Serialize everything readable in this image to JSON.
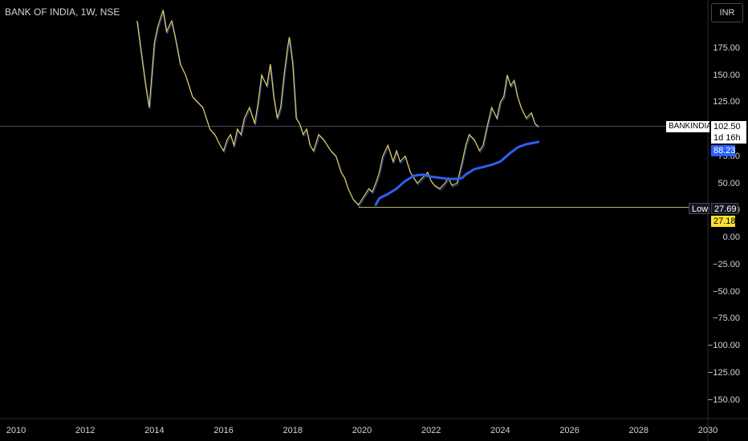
{
  "header": {
    "title": "BANK OF INDIA, 1W, NSE",
    "currency": "INR"
  },
  "price_tag": {
    "symbol": "BANKINDIA",
    "price": "102.50",
    "countdown": "1d 16h"
  },
  "ma_tag": {
    "value": "88.23"
  },
  "low_tag": {
    "label": "Low",
    "value": "27.69"
  },
  "low_extra_tag": {
    "value": "27.18"
  },
  "colors": {
    "background": "#000000",
    "price_line": "#e6d05a",
    "price_line_alt": "#3a5bd9",
    "ma_line": "#2f5ff0",
    "low_line": "#c9c46a",
    "axis_text": "#d1d4dc",
    "price_tag_bg": "#ffffff",
    "ma_tag_bg": "#2962ff",
    "low_tag_bg": "#131722",
    "low_extra_tag_bg": "#f7e02f"
  },
  "chart_data": {
    "type": "line",
    "title": "BANK OF INDIA, 1W, NSE",
    "xlabel": "",
    "ylabel": "",
    "xlim": [
      2010,
      2030
    ],
    "ylim": [
      -165,
      205
    ],
    "y_ticks": [
      "175.00",
      "150.00",
      "125.00",
      "100.00",
      "75.00",
      "50.00",
      "25.00",
      "0.00",
      "−25.00",
      "−50.00",
      "−75.00",
      "−100.00",
      "−125.00",
      "−150.00"
    ],
    "y_tick_values": [
      175,
      150,
      125,
      100,
      75,
      50,
      25,
      0,
      -25,
      -50,
      -75,
      -100,
      -125,
      -150
    ],
    "x_ticks": [
      "2010",
      "2012",
      "2014",
      "2016",
      "2018",
      "2020",
      "2022",
      "2024",
      "2026",
      "2028",
      "2030"
    ],
    "x_tick_values": [
      2010,
      2012,
      2014,
      2016,
      2018,
      2020,
      2022,
      2024,
      2026,
      2028,
      2030
    ],
    "grid": false,
    "series": [
      {
        "values_x": [
          2013.5,
          2013.6,
          2013.75,
          2013.85,
          2014.0,
          2014.1,
          2014.25,
          2014.35,
          2014.5,
          2014.6,
          2014.75,
          2014.9,
          2015.0,
          2015.1,
          2015.25,
          2015.4,
          2015.5,
          2015.6,
          2015.75,
          2015.9,
          2016.0,
          2016.1,
          2016.2,
          2016.3,
          2016.4,
          2016.5,
          2016.6,
          2016.75,
          2016.9,
          2017.0,
          2017.1,
          2017.25,
          2017.35,
          2017.45,
          2017.55,
          2017.65,
          2017.75,
          2017.85,
          2017.9,
          2018.0,
          2018.1,
          2018.2,
          2018.3,
          2018.4,
          2018.5,
          2018.6,
          2018.75,
          2018.9,
          2019.0,
          2019.1,
          2019.25,
          2019.4,
          2019.5,
          2019.6,
          2019.75,
          2019.9,
          2020.0,
          2020.1,
          2020.2,
          2020.3,
          2020.4,
          2020.5,
          2020.6,
          2020.75,
          2020.9,
          2021.0,
          2021.1,
          2021.25,
          2021.4,
          2021.5,
          2021.6,
          2021.75,
          2021.9,
          2022.0,
          2022.1,
          2022.25,
          2022.4,
          2022.5,
          2022.6,
          2022.75,
          2022.9,
          2023.0,
          2023.1,
          2023.25,
          2023.4,
          2023.5,
          2023.6,
          2023.75,
          2023.9,
          2024.0,
          2024.1,
          2024.2,
          2024.3,
          2024.4,
          2024.5,
          2024.6,
          2024.75,
          2024.9,
          2025.0,
          2025.1
        ],
        "values": [
          200,
          175,
          140,
          120,
          180,
          195,
          210,
          190,
          200,
          185,
          160,
          150,
          140,
          130,
          125,
          120,
          110,
          100,
          95,
          85,
          80,
          90,
          95,
          85,
          100,
          95,
          110,
          120,
          105,
          125,
          150,
          140,
          160,
          130,
          110,
          120,
          150,
          175,
          185,
          160,
          110,
          105,
          95,
          100,
          85,
          80,
          95,
          90,
          85,
          80,
          75,
          60,
          55,
          45,
          35,
          30,
          35,
          40,
          45,
          42,
          50,
          60,
          75,
          85,
          70,
          80,
          70,
          75,
          60,
          55,
          50,
          55,
          60,
          52,
          48,
          45,
          50,
          55,
          48,
          50,
          70,
          85,
          95,
          90,
          80,
          85,
          100,
          120,
          110,
          125,
          130,
          150,
          140,
          145,
          130,
          120,
          110,
          115,
          105,
          102.5
        ],
        "name": ""
      },
      {
        "values_x": [
          2020.4,
          2020.5,
          2020.75,
          2021.0,
          2021.25,
          2021.5,
          2021.75,
          2022.0,
          2022.25,
          2022.5,
          2022.75,
          2022.9,
          2023.0,
          2023.25,
          2023.5,
          2023.75,
          2024.0,
          2024.25,
          2024.5,
          2024.75,
          2025.0,
          2025.1
        ],
        "values": [
          30,
          36,
          40,
          45,
          52,
          57,
          58,
          56,
          55,
          54,
          54,
          55,
          58,
          63,
          65,
          67,
          70,
          77,
          83,
          86,
          87.5,
          88.23
        ],
        "name": ""
      }
    ],
    "annotations": [
      {
        "type": "hline",
        "y": 102.5,
        "label": "BANKINDIA 102.50"
      },
      {
        "type": "hline_segment",
        "y": 27.69,
        "x_start": 2019.9,
        "label": "Low 27.69"
      }
    ]
  }
}
